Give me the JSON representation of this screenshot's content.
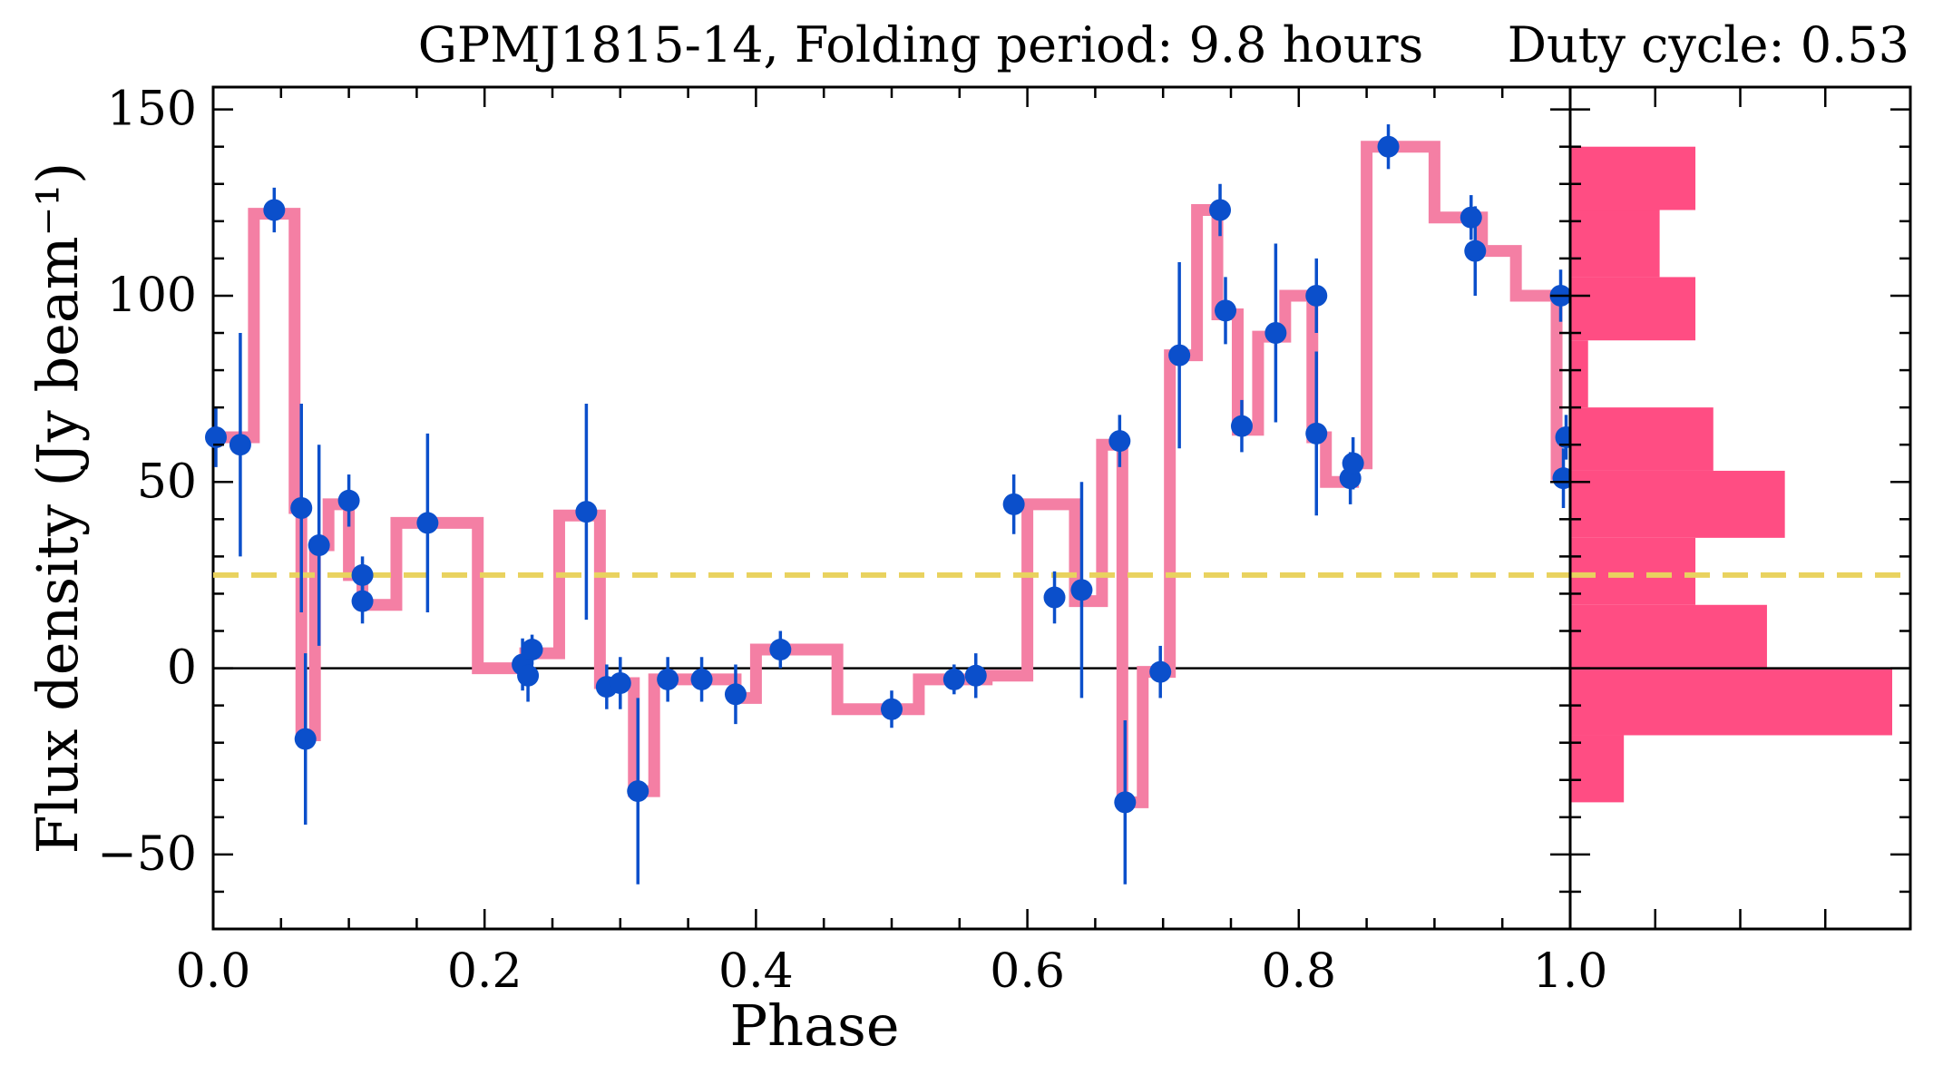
{
  "chart_data": {
    "type": "line",
    "title": "GPMJ1815-14, Folding period: 9.8 hours",
    "side_title": "Duty cycle: 0.53",
    "xlabel": "Phase",
    "ylabel": "Flux density (Jy beam⁻¹)",
    "xlim": [
      0.0,
      1.0
    ],
    "ylim": [
      -70,
      156
    ],
    "x_ticks": [
      0.0,
      0.2,
      0.4,
      0.6,
      0.8,
      1.0
    ],
    "x_tick_labels": [
      "0.0",
      "0.2",
      "0.4",
      "0.6",
      "0.8",
      "1.0"
    ],
    "y_ticks": [
      150,
      100,
      50,
      0,
      -50
    ],
    "y_tick_labels": [
      "150",
      "100",
      "50",
      "0",
      "−50"
    ],
    "grid": false,
    "colors": {
      "step": "#f47fa4",
      "points": "#0b4fcb",
      "errorbars": "#0b4fcb",
      "threshold": "#e9d25f",
      "histogram": "#ff4d83",
      "zero_line": "#000000"
    },
    "threshold_y": 25,
    "step_series": {
      "x": [
        0.0,
        0.03,
        0.06,
        0.065,
        0.075,
        0.085,
        0.1,
        0.11,
        0.135,
        0.195,
        0.23,
        0.255,
        0.285,
        0.31,
        0.325,
        0.385,
        0.4,
        0.46,
        0.52,
        0.57,
        0.6,
        0.635,
        0.655,
        0.67,
        0.685,
        0.705,
        0.725,
        0.74,
        0.755,
        0.77,
        0.79,
        0.81,
        0.82,
        0.84,
        0.85,
        0.9,
        0.935,
        0.96,
        0.99
      ],
      "y": [
        62,
        122,
        43,
        -18,
        33,
        44,
        25,
        17,
        39,
        0,
        4,
        41,
        -4,
        -33,
        -3,
        -8,
        5,
        -11,
        -3,
        -2,
        44,
        18,
        60,
        -36,
        -1,
        84,
        123,
        95,
        64,
        89,
        100,
        62,
        50,
        55,
        140,
        121,
        112,
        100,
        52
      ]
    },
    "points": {
      "x": [
        0.002,
        0.02,
        0.045,
        0.065,
        0.068,
        0.078,
        0.1,
        0.11,
        0.11,
        0.158,
        0.228,
        0.232,
        0.235,
        0.275,
        0.29,
        0.3,
        0.313,
        0.335,
        0.36,
        0.385,
        0.418,
        0.5,
        0.546,
        0.562,
        0.59,
        0.62,
        0.64,
        0.668,
        0.672,
        0.698,
        0.712,
        0.742,
        0.746,
        0.758,
        0.783,
        0.813,
        0.813,
        0.838,
        0.84,
        0.866,
        0.927,
        0.93,
        0.993,
        0.995,
        0.997
      ],
      "y": [
        62,
        60,
        123,
        43,
        -19,
        33,
        45,
        25,
        18,
        39,
        1,
        -2,
        5,
        42,
        -5,
        -4,
        -33,
        -3,
        -3,
        -7,
        5,
        -11,
        -3,
        -2,
        44,
        19,
        21,
        61,
        -36,
        -1,
        84,
        123,
        96,
        65,
        90,
        100,
        63,
        51,
        55,
        140,
        121,
        112,
        100,
        51,
        62
      ],
      "err": [
        8,
        30,
        6,
        28,
        23,
        27,
        7,
        5,
        6,
        24,
        7,
        7,
        4,
        29,
        6,
        7,
        25,
        6,
        6,
        8,
        5,
        5,
        4,
        6,
        8,
        7,
        29,
        7,
        22,
        7,
        25,
        7,
        9,
        7,
        24,
        10,
        22,
        7,
        7,
        6,
        6,
        12,
        7,
        8,
        6
      ]
    },
    "histogram": {
      "bin_edges": [
        -36,
        -18,
        0,
        17,
        35,
        53,
        70,
        88,
        105,
        123,
        140
      ],
      "counts": [
        3,
        18,
        11,
        7,
        12,
        8,
        1,
        7,
        5,
        7
      ]
    }
  }
}
